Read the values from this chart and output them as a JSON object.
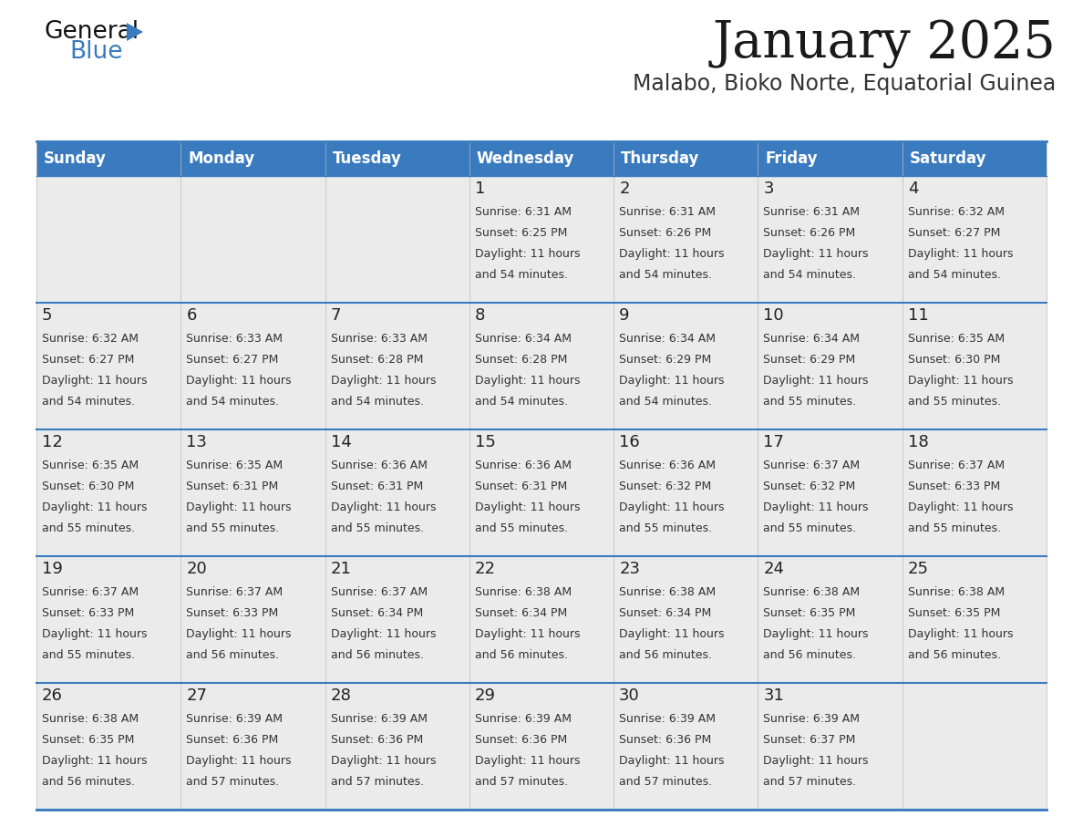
{
  "title": "January 2025",
  "subtitle": "Malabo, Bioko Norte, Equatorial Guinea",
  "header_bg": "#3a7abf",
  "header_text_color": "#ffffff",
  "cell_bg": "#ebebeb",
  "cell_bg_white": "#ffffff",
  "day_number_color": "#222222",
  "info_text_color": "#333333",
  "border_color": "#3a7abf",
  "days_of_week": [
    "Sunday",
    "Monday",
    "Tuesday",
    "Wednesday",
    "Thursday",
    "Friday",
    "Saturday"
  ],
  "calendar": [
    [
      null,
      null,
      null,
      {
        "day": 1,
        "sunrise": "6:31 AM",
        "sunset": "6:25 PM",
        "daylight_hours": 11,
        "daylight_minutes": 54
      },
      {
        "day": 2,
        "sunrise": "6:31 AM",
        "sunset": "6:26 PM",
        "daylight_hours": 11,
        "daylight_minutes": 54
      },
      {
        "day": 3,
        "sunrise": "6:31 AM",
        "sunset": "6:26 PM",
        "daylight_hours": 11,
        "daylight_minutes": 54
      },
      {
        "day": 4,
        "sunrise": "6:32 AM",
        "sunset": "6:27 PM",
        "daylight_hours": 11,
        "daylight_minutes": 54
      }
    ],
    [
      {
        "day": 5,
        "sunrise": "6:32 AM",
        "sunset": "6:27 PM",
        "daylight_hours": 11,
        "daylight_minutes": 54
      },
      {
        "day": 6,
        "sunrise": "6:33 AM",
        "sunset": "6:27 PM",
        "daylight_hours": 11,
        "daylight_minutes": 54
      },
      {
        "day": 7,
        "sunrise": "6:33 AM",
        "sunset": "6:28 PM",
        "daylight_hours": 11,
        "daylight_minutes": 54
      },
      {
        "day": 8,
        "sunrise": "6:34 AM",
        "sunset": "6:28 PM",
        "daylight_hours": 11,
        "daylight_minutes": 54
      },
      {
        "day": 9,
        "sunrise": "6:34 AM",
        "sunset": "6:29 PM",
        "daylight_hours": 11,
        "daylight_minutes": 54
      },
      {
        "day": 10,
        "sunrise": "6:34 AM",
        "sunset": "6:29 PM",
        "daylight_hours": 11,
        "daylight_minutes": 55
      },
      {
        "day": 11,
        "sunrise": "6:35 AM",
        "sunset": "6:30 PM",
        "daylight_hours": 11,
        "daylight_minutes": 55
      }
    ],
    [
      {
        "day": 12,
        "sunrise": "6:35 AM",
        "sunset": "6:30 PM",
        "daylight_hours": 11,
        "daylight_minutes": 55
      },
      {
        "day": 13,
        "sunrise": "6:35 AM",
        "sunset": "6:31 PM",
        "daylight_hours": 11,
        "daylight_minutes": 55
      },
      {
        "day": 14,
        "sunrise": "6:36 AM",
        "sunset": "6:31 PM",
        "daylight_hours": 11,
        "daylight_minutes": 55
      },
      {
        "day": 15,
        "sunrise": "6:36 AM",
        "sunset": "6:31 PM",
        "daylight_hours": 11,
        "daylight_minutes": 55
      },
      {
        "day": 16,
        "sunrise": "6:36 AM",
        "sunset": "6:32 PM",
        "daylight_hours": 11,
        "daylight_minutes": 55
      },
      {
        "day": 17,
        "sunrise": "6:37 AM",
        "sunset": "6:32 PM",
        "daylight_hours": 11,
        "daylight_minutes": 55
      },
      {
        "day": 18,
        "sunrise": "6:37 AM",
        "sunset": "6:33 PM",
        "daylight_hours": 11,
        "daylight_minutes": 55
      }
    ],
    [
      {
        "day": 19,
        "sunrise": "6:37 AM",
        "sunset": "6:33 PM",
        "daylight_hours": 11,
        "daylight_minutes": 55
      },
      {
        "day": 20,
        "sunrise": "6:37 AM",
        "sunset": "6:33 PM",
        "daylight_hours": 11,
        "daylight_minutes": 56
      },
      {
        "day": 21,
        "sunrise": "6:37 AM",
        "sunset": "6:34 PM",
        "daylight_hours": 11,
        "daylight_minutes": 56
      },
      {
        "day": 22,
        "sunrise": "6:38 AM",
        "sunset": "6:34 PM",
        "daylight_hours": 11,
        "daylight_minutes": 56
      },
      {
        "day": 23,
        "sunrise": "6:38 AM",
        "sunset": "6:34 PM",
        "daylight_hours": 11,
        "daylight_minutes": 56
      },
      {
        "day": 24,
        "sunrise": "6:38 AM",
        "sunset": "6:35 PM",
        "daylight_hours": 11,
        "daylight_minutes": 56
      },
      {
        "day": 25,
        "sunrise": "6:38 AM",
        "sunset": "6:35 PM",
        "daylight_hours": 11,
        "daylight_minutes": 56
      }
    ],
    [
      {
        "day": 26,
        "sunrise": "6:38 AM",
        "sunset": "6:35 PM",
        "daylight_hours": 11,
        "daylight_minutes": 56
      },
      {
        "day": 27,
        "sunrise": "6:39 AM",
        "sunset": "6:36 PM",
        "daylight_hours": 11,
        "daylight_minutes": 57
      },
      {
        "day": 28,
        "sunrise": "6:39 AM",
        "sunset": "6:36 PM",
        "daylight_hours": 11,
        "daylight_minutes": 57
      },
      {
        "day": 29,
        "sunrise": "6:39 AM",
        "sunset": "6:36 PM",
        "daylight_hours": 11,
        "daylight_minutes": 57
      },
      {
        "day": 30,
        "sunrise": "6:39 AM",
        "sunset": "6:36 PM",
        "daylight_hours": 11,
        "daylight_minutes": 57
      },
      {
        "day": 31,
        "sunrise": "6:39 AM",
        "sunset": "6:37 PM",
        "daylight_hours": 11,
        "daylight_minutes": 57
      },
      null
    ]
  ]
}
